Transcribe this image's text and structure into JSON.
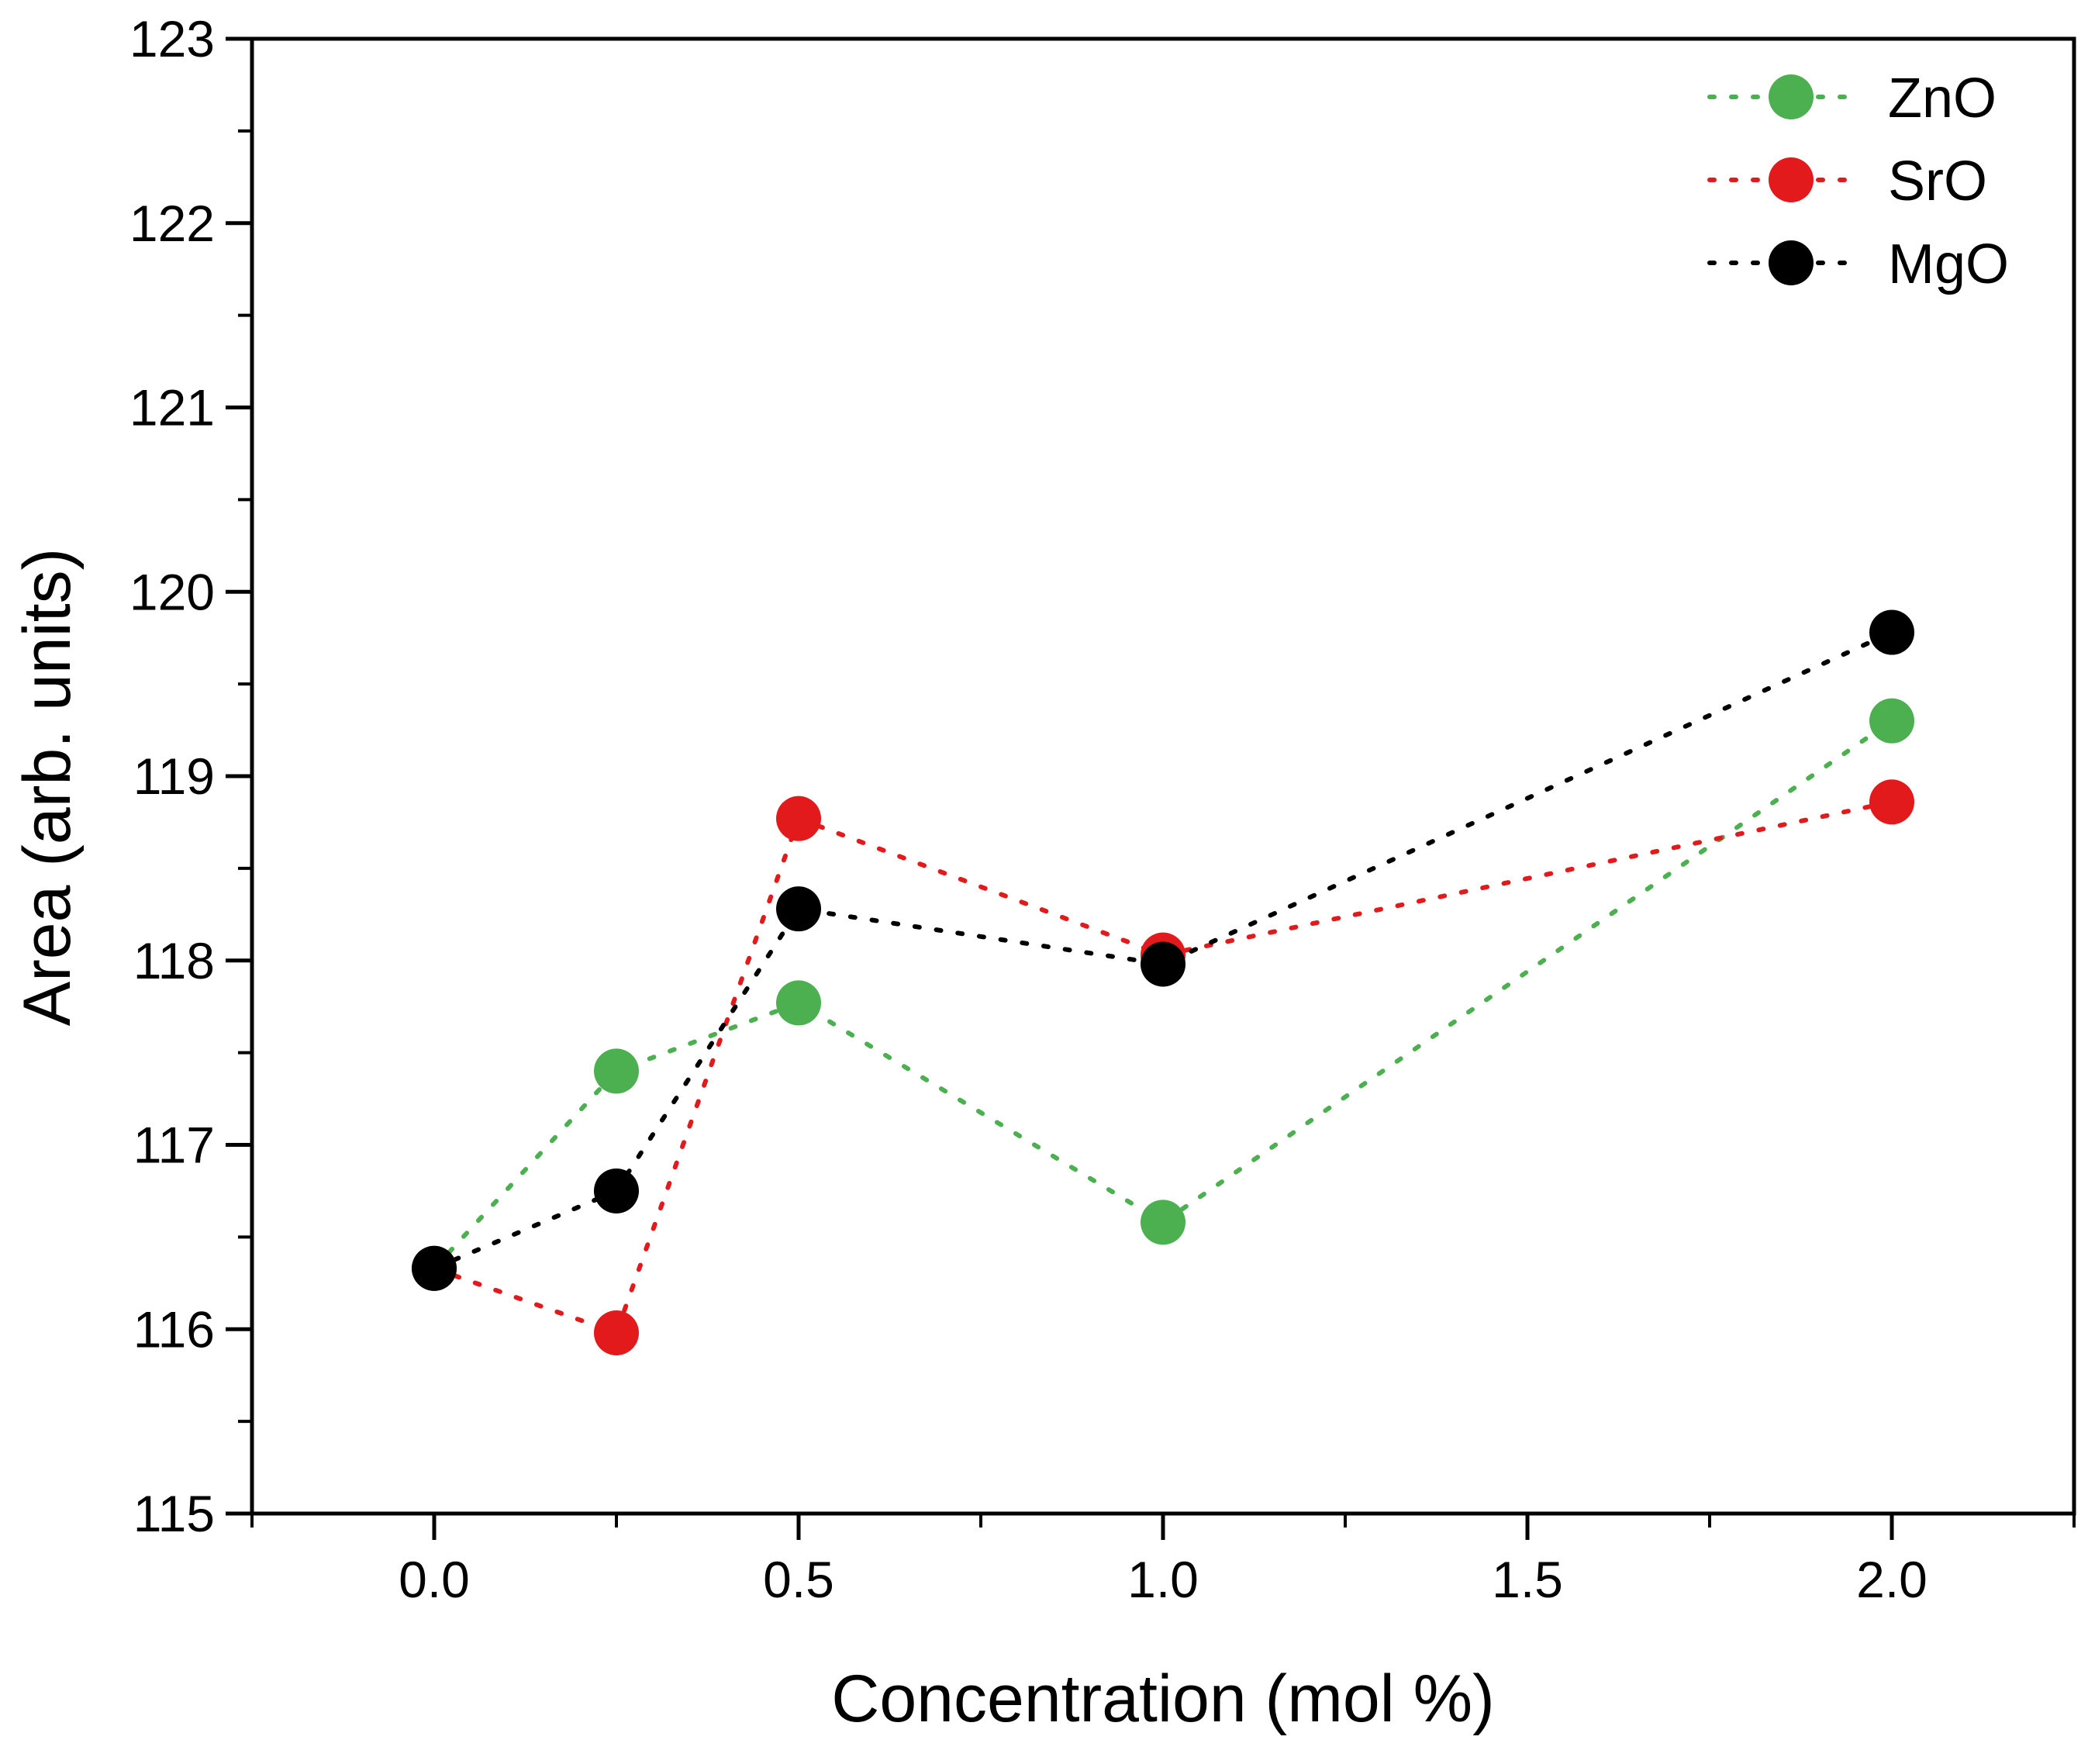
{
  "chart_data": {
    "type": "scatter",
    "title": "",
    "xlabel": "Concentration (mol %)",
    "ylabel": "Area (arb. units)",
    "xlim": [
      -0.25,
      2.25
    ],
    "ylim": [
      115,
      123
    ],
    "x_ticks": [
      0.0,
      0.5,
      1.0,
      1.5,
      2.0
    ],
    "x_tick_labels": [
      "0.0",
      "0.5",
      "1.0",
      "1.5",
      "2.0"
    ],
    "y_ticks": [
      115,
      116,
      117,
      118,
      119,
      120,
      121,
      122,
      123
    ],
    "y_tick_labels": [
      "115",
      "116",
      "117",
      "118",
      "119",
      "120",
      "121",
      "122",
      "123"
    ],
    "grid": false,
    "legend_position": "top-right",
    "line_style": "dotted",
    "series": [
      {
        "name": "ZnO",
        "color": "#4caf50",
        "x": [
          0,
          0.25,
          0.5,
          1.0,
          2.0
        ],
        "y": [
          116.33,
          117.4,
          117.77,
          116.58,
          119.3
        ]
      },
      {
        "name": "SrO",
        "color": "#e31a1c",
        "x": [
          0,
          0.25,
          0.5,
          1.0,
          2.0
        ],
        "y": [
          116.33,
          115.98,
          118.77,
          118.03,
          118.86
        ]
      },
      {
        "name": "MgO",
        "color": "#000000",
        "x": [
          0,
          0.25,
          0.5,
          1.0,
          2.0
        ],
        "y": [
          116.33,
          116.75,
          118.28,
          117.98,
          119.78
        ]
      }
    ]
  }
}
